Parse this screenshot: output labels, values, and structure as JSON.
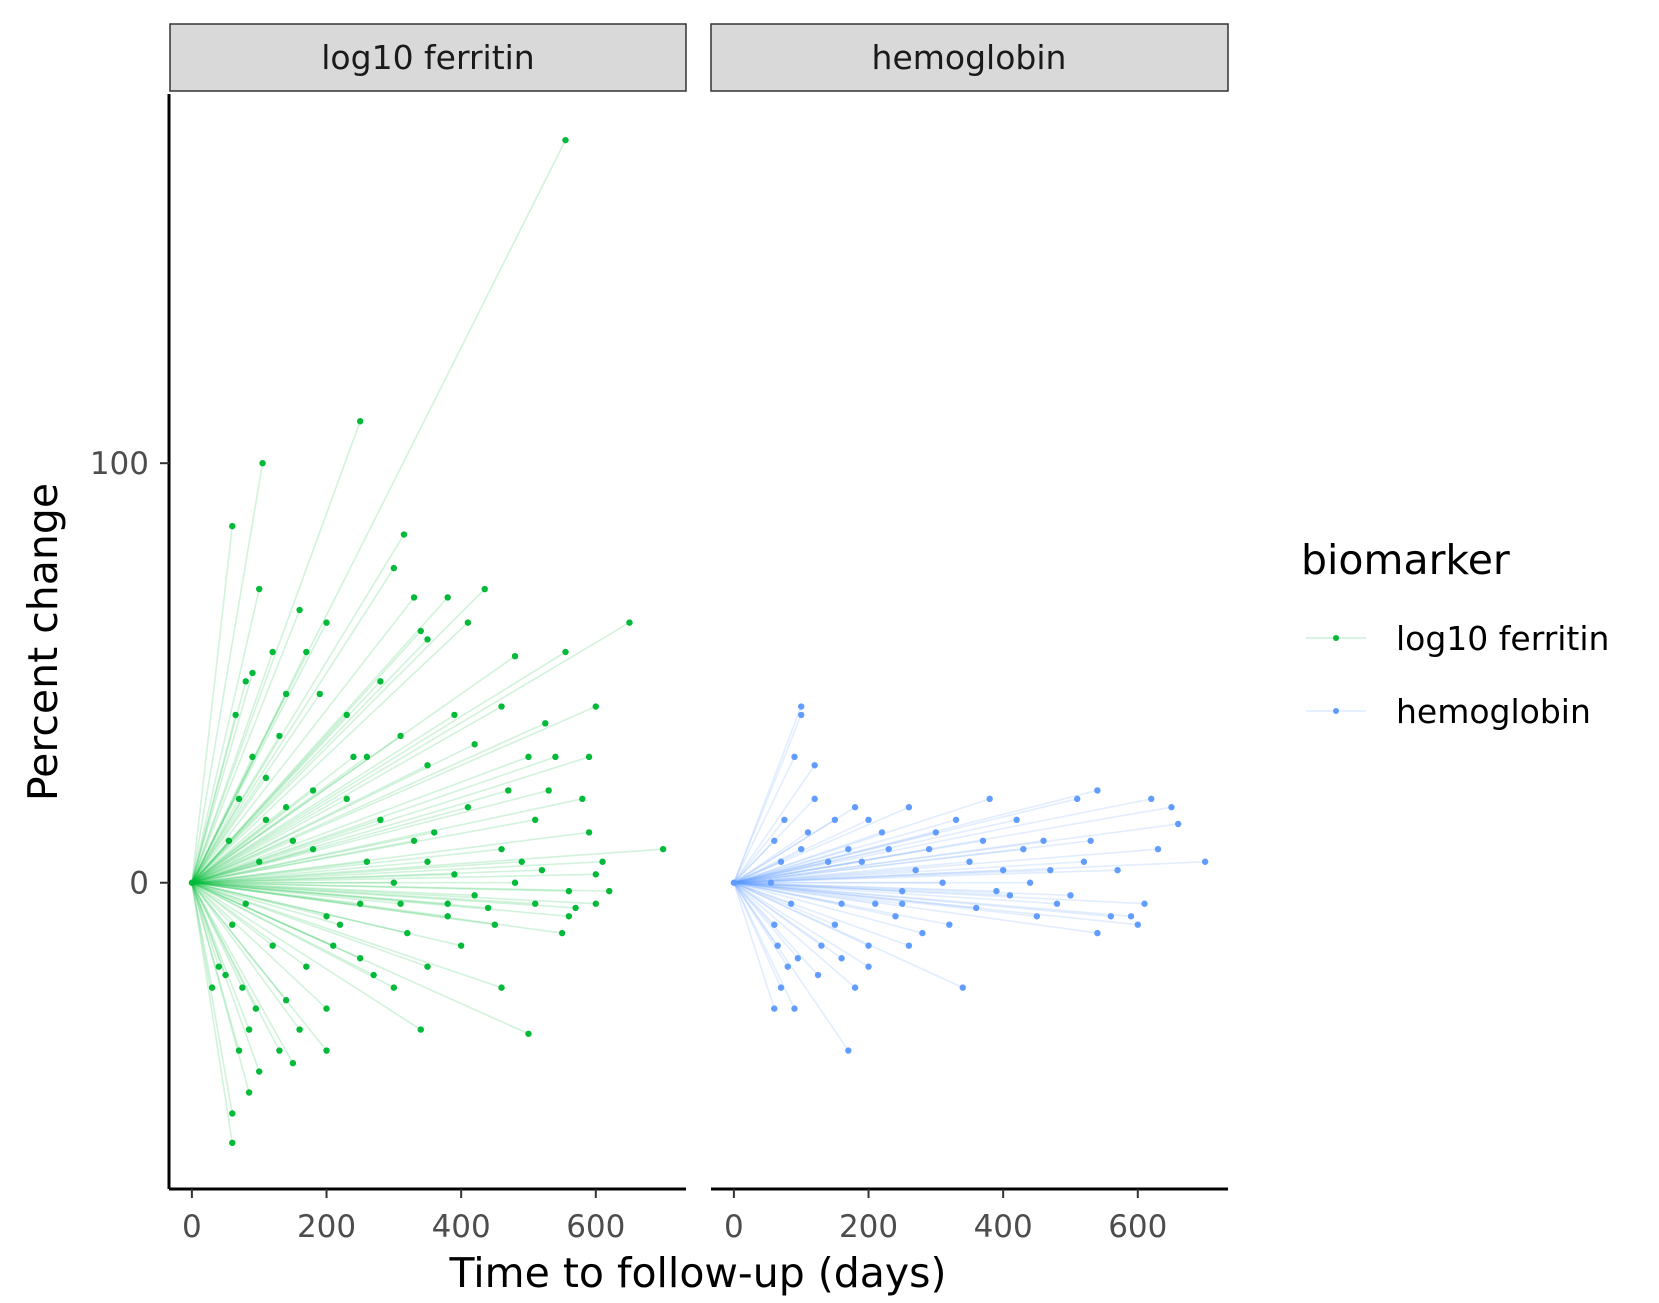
{
  "chart_data": {
    "type": "line",
    "xlabel": "Time to follow-up (days)",
    "ylabel": "Percent change",
    "xlim": [
      -34,
      734
    ],
    "ylim": [
      -73,
      188
    ],
    "x_ticks": [
      0,
      200,
      400,
      600
    ],
    "x_tick_labels": [
      "0",
      "200",
      "400",
      "600"
    ],
    "y_ticks": [
      0,
      100
    ],
    "y_tick_labels": [
      "0",
      "100"
    ],
    "grid": false,
    "legend": {
      "title": "biomarker",
      "position": "right",
      "entries": [
        "log10 ferritin",
        "hemoglobin"
      ]
    },
    "series": [
      {
        "name": "log10 ferritin",
        "panel": "log10 ferritin",
        "color": "#00BA38",
        "points": [
          [
            555,
            177
          ],
          [
            250,
            110
          ],
          [
            105,
            100
          ],
          [
            60,
            85
          ],
          [
            315,
            83
          ],
          [
            300,
            75
          ],
          [
            100,
            70
          ],
          [
            330,
            68
          ],
          [
            650,
            62
          ],
          [
            435,
            70
          ],
          [
            380,
            68
          ],
          [
            410,
            62
          ],
          [
            350,
            58
          ],
          [
            340,
            60
          ],
          [
            555,
            55
          ],
          [
            480,
            54
          ],
          [
            600,
            42
          ],
          [
            525,
            38
          ],
          [
            460,
            42
          ],
          [
            500,
            30
          ],
          [
            390,
            40
          ],
          [
            280,
            48
          ],
          [
            200,
            62
          ],
          [
            160,
            65
          ],
          [
            120,
            55
          ],
          [
            90,
            50
          ],
          [
            140,
            45
          ],
          [
            80,
            48
          ],
          [
            230,
            40
          ],
          [
            310,
            35
          ],
          [
            260,
            30
          ],
          [
            350,
            28
          ],
          [
            420,
            33
          ],
          [
            470,
            22
          ],
          [
            540,
            30
          ],
          [
            580,
            20
          ],
          [
            590,
            12
          ],
          [
            610,
            5
          ],
          [
            620,
            -2
          ],
          [
            700,
            8
          ],
          [
            600,
            -5
          ],
          [
            560,
            -8
          ],
          [
            510,
            -5
          ],
          [
            450,
            -10
          ],
          [
            400,
            -15
          ],
          [
            350,
            -20
          ],
          [
            300,
            -25
          ],
          [
            250,
            -18
          ],
          [
            200,
            -30
          ],
          [
            160,
            -35
          ],
          [
            130,
            -40
          ],
          [
            100,
            -45
          ],
          [
            85,
            -50
          ],
          [
            60,
            -55
          ],
          [
            60,
            -62
          ],
          [
            150,
            -43
          ],
          [
            200,
            -40
          ],
          [
            340,
            -35
          ],
          [
            500,
            -36
          ],
          [
            460,
            -25
          ],
          [
            550,
            -12
          ],
          [
            380,
            -5
          ],
          [
            330,
            10
          ],
          [
            280,
            15
          ],
          [
            230,
            20
          ],
          [
            180,
            22
          ],
          [
            140,
            18
          ],
          [
            110,
            25
          ],
          [
            90,
            30
          ],
          [
            70,
            20
          ],
          [
            60,
            -10
          ],
          [
            50,
            -22
          ],
          [
            40,
            -20
          ],
          [
            30,
            -25
          ],
          [
            120,
            -15
          ],
          [
            170,
            -20
          ],
          [
            220,
            -10
          ],
          [
            260,
            5
          ],
          [
            310,
            -5
          ],
          [
            360,
            12
          ],
          [
            410,
            18
          ],
          [
            460,
            8
          ],
          [
            510,
            15
          ],
          [
            560,
            -2
          ],
          [
            600,
            2
          ],
          [
            420,
            -3
          ],
          [
            480,
            0
          ],
          [
            520,
            3
          ],
          [
            250,
            -5
          ],
          [
            180,
            8
          ],
          [
            100,
            5
          ],
          [
            80,
            -5
          ],
          [
            150,
            10
          ],
          [
            200,
            -8
          ],
          [
            300,
            0
          ],
          [
            350,
            5
          ],
          [
            380,
            -8
          ],
          [
            240,
            30
          ],
          [
            190,
            45
          ],
          [
            170,
            55
          ],
          [
            130,
            35
          ],
          [
            110,
            15
          ],
          [
            95,
            -30
          ],
          [
            75,
            -25
          ],
          [
            65,
            40
          ],
          [
            55,
            10
          ],
          [
            70,
            -40
          ],
          [
            85,
            -35
          ],
          [
            140,
            -28
          ],
          [
            210,
            -15
          ],
          [
            270,
            -22
          ],
          [
            320,
            -12
          ],
          [
            390,
            2
          ],
          [
            440,
            -6
          ],
          [
            490,
            5
          ],
          [
            530,
            22
          ],
          [
            570,
            -6
          ],
          [
            590,
            30
          ]
        ]
      },
      {
        "name": "hemoglobin",
        "panel": "hemoglobin",
        "color": "#619CFF",
        "points": [
          [
            100,
            40
          ],
          [
            100,
            42
          ],
          [
            90,
            30
          ],
          [
            120,
            28
          ],
          [
            170,
            8
          ],
          [
            200,
            15
          ],
          [
            260,
            18
          ],
          [
            300,
            12
          ],
          [
            380,
            20
          ],
          [
            420,
            15
          ],
          [
            460,
            10
          ],
          [
            510,
            20
          ],
          [
            540,
            22
          ],
          [
            620,
            20
          ],
          [
            660,
            14
          ],
          [
            700,
            5
          ],
          [
            600,
            -10
          ],
          [
            560,
            -8
          ],
          [
            520,
            5
          ],
          [
            480,
            -5
          ],
          [
            440,
            0
          ],
          [
            400,
            3
          ],
          [
            360,
            -6
          ],
          [
            320,
            -10
          ],
          [
            280,
            -12
          ],
          [
            240,
            -8
          ],
          [
            200,
            -15
          ],
          [
            180,
            -25
          ],
          [
            170,
            -40
          ],
          [
            90,
            -30
          ],
          [
            60,
            -30
          ],
          [
            340,
            -25
          ],
          [
            250,
            -5
          ],
          [
            150,
            -10
          ],
          [
            130,
            -15
          ],
          [
            80,
            -20
          ],
          [
            70,
            -25
          ],
          [
            60,
            -10
          ],
          [
            60,
            10
          ],
          [
            75,
            15
          ],
          [
            110,
            12
          ],
          [
            140,
            5
          ],
          [
            160,
            -5
          ],
          [
            190,
            5
          ],
          [
            210,
            -5
          ],
          [
            230,
            8
          ],
          [
            270,
            3
          ],
          [
            310,
            0
          ],
          [
            350,
            5
          ],
          [
            390,
            -2
          ],
          [
            430,
            8
          ],
          [
            470,
            3
          ],
          [
            500,
            -3
          ],
          [
            530,
            10
          ],
          [
            570,
            3
          ],
          [
            590,
            -8
          ],
          [
            610,
            -5
          ],
          [
            630,
            8
          ],
          [
            650,
            18
          ],
          [
            540,
            -12
          ],
          [
            450,
            -8
          ],
          [
            410,
            -3
          ],
          [
            370,
            10
          ],
          [
            330,
            15
          ],
          [
            290,
            8
          ],
          [
            250,
            -2
          ],
          [
            220,
            12
          ],
          [
            180,
            18
          ],
          [
            150,
            15
          ],
          [
            120,
            20
          ],
          [
            100,
            8
          ],
          [
            85,
            -5
          ],
          [
            70,
            5
          ],
          [
            65,
            -15
          ],
          [
            55,
            0
          ],
          [
            95,
            -18
          ],
          [
            125,
            -22
          ],
          [
            160,
            -18
          ],
          [
            200,
            -20
          ],
          [
            260,
            -15
          ]
        ]
      }
    ]
  },
  "panels": [
    {
      "strip_label": "log10 ferritin"
    },
    {
      "strip_label": "hemoglobin"
    }
  ]
}
